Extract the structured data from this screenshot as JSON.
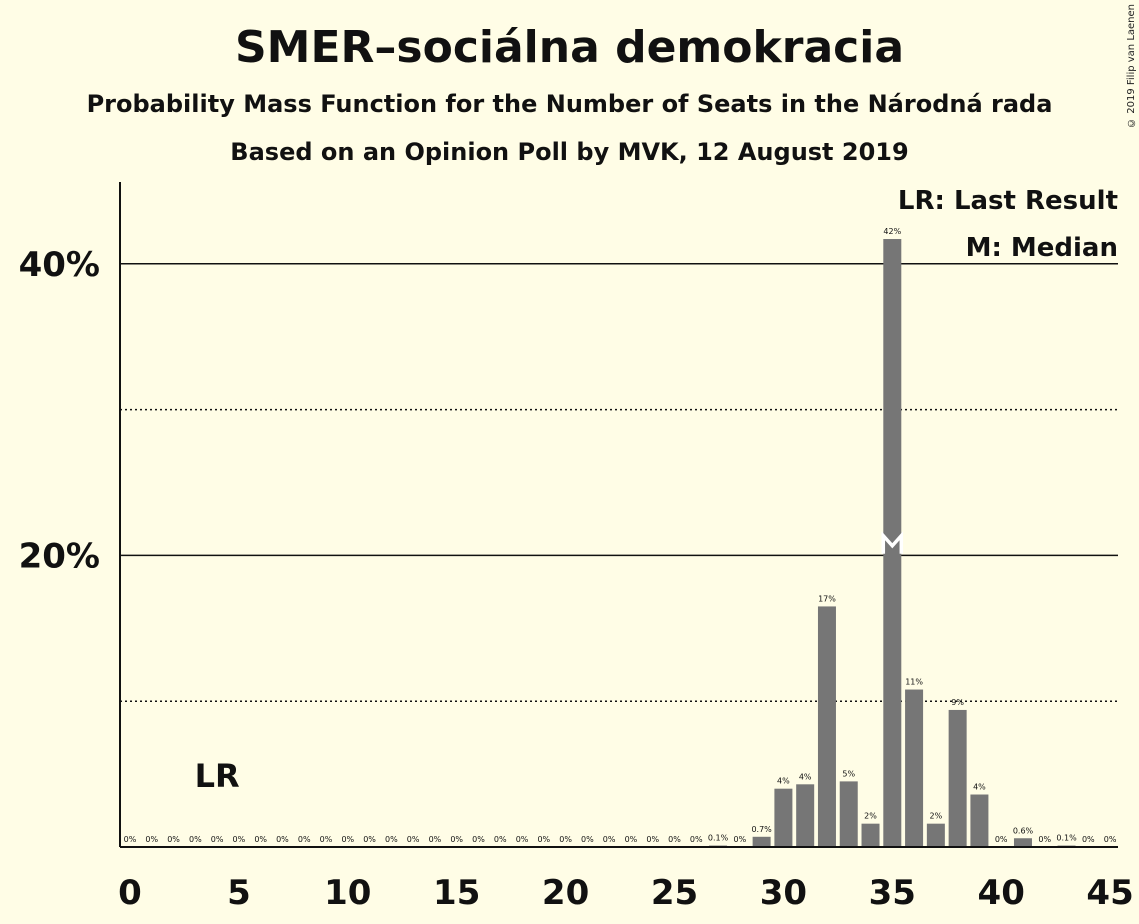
{
  "title": "SMER–sociálna demokracia",
  "subtitle": "Probability Mass Function for the Number of Seats in the Národná rada",
  "source": "Based on an Opinion Poll by MVK, 12 August 2019",
  "copyright": "© 2019 Filip van Laenen",
  "colors": {
    "bar": "#767676",
    "background": "#fffde6",
    "text": "#111111"
  },
  "chart_data": {
    "type": "bar",
    "x": [
      0,
      1,
      2,
      3,
      4,
      5,
      6,
      7,
      8,
      9,
      10,
      11,
      12,
      13,
      14,
      15,
      16,
      17,
      18,
      19,
      20,
      21,
      22,
      23,
      24,
      25,
      26,
      27,
      28,
      29,
      30,
      31,
      32,
      33,
      34,
      35,
      36,
      37,
      38,
      39,
      40,
      41,
      42,
      43,
      44,
      45
    ],
    "values": [
      0,
      0,
      0,
      0,
      0,
      0,
      0,
      0,
      0,
      0,
      0,
      0,
      0,
      0,
      0,
      0,
      0,
      0,
      0,
      0,
      0,
      0,
      0,
      0,
      0,
      0,
      0,
      0.1,
      0,
      0.7,
      4.0,
      4.3,
      16.5,
      4.5,
      1.6,
      41.7,
      10.8,
      1.6,
      9.4,
      3.6,
      0,
      0.6,
      0,
      0.1,
      0,
      0
    ],
    "labels": [
      "0%",
      "0%",
      "0%",
      "0%",
      "0%",
      "0%",
      "0%",
      "0%",
      "0%",
      "0%",
      "0%",
      "0%",
      "0%",
      "0%",
      "0%",
      "0%",
      "0%",
      "0%",
      "0%",
      "0%",
      "0%",
      "0%",
      "0%",
      "0%",
      "0%",
      "0%",
      "0%",
      "0.1%",
      "0%",
      "0.7%",
      "4%",
      "4%",
      "17%",
      "5%",
      "2%",
      "42%",
      "11%",
      "2%",
      "9%",
      "4%",
      "0%",
      "0.6%",
      "0%",
      "0.1%",
      "0%",
      "0%"
    ],
    "xticks": [
      0,
      5,
      10,
      15,
      20,
      25,
      30,
      35,
      40,
      45
    ],
    "xtick_labels": [
      "0",
      "5",
      "10",
      "15",
      "20",
      "25",
      "30",
      "35",
      "40",
      "45"
    ],
    "yticks_major": [
      20,
      40
    ],
    "yticks_major_labels": [
      "20%",
      "40%"
    ],
    "yticks_minor": [
      10,
      30
    ],
    "ylim": [
      0,
      45
    ],
    "xlim": [
      0,
      45
    ],
    "last_result": {
      "x": 4,
      "label": "LR"
    },
    "median": {
      "x": 35,
      "label": "M"
    },
    "legend": [
      "LR: Last Result",
      "M: Median"
    ],
    "legend_position": "top-right"
  }
}
